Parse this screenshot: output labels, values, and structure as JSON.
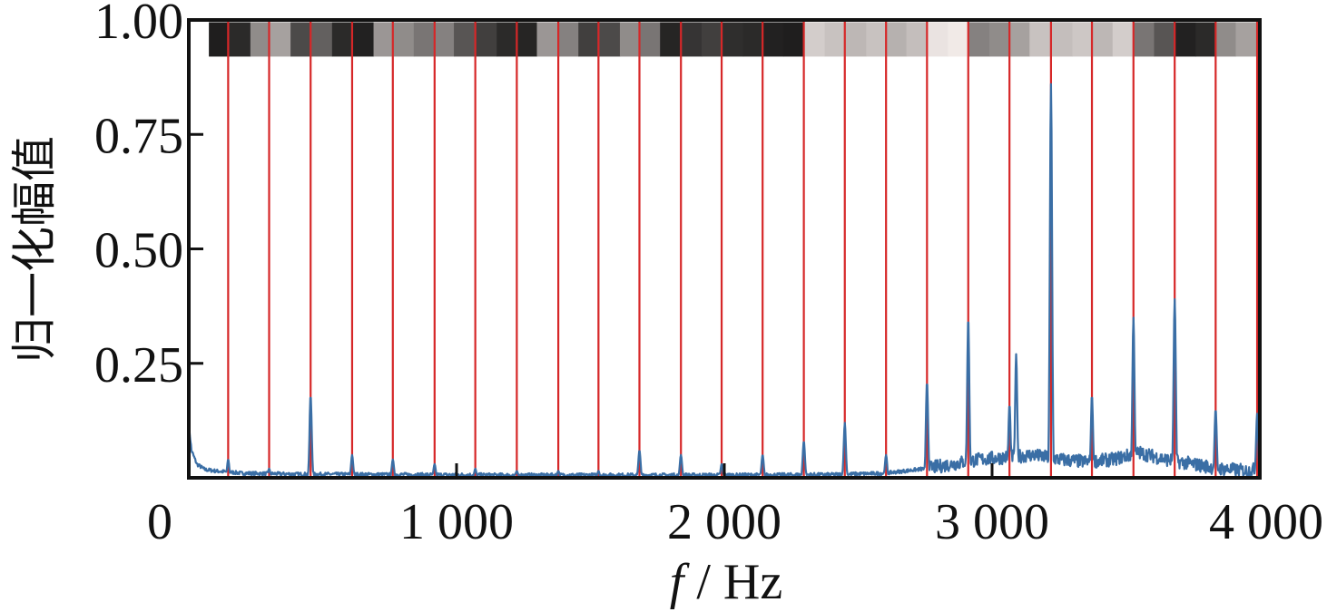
{
  "chart_data": {
    "type": "line",
    "title": "",
    "xlabel_italic": "f",
    "xlabel_rest": " / Hz",
    "ylabel": "归一化幅值",
    "xlim": [
      0,
      4000
    ],
    "ylim": [
      0,
      1.0
    ],
    "x_ticks": [
      0,
      1000,
      2000,
      3000,
      4000
    ],
    "x_tick_labels": [
      "0",
      "1 000",
      "2 000",
      "3 000",
      "4 000"
    ],
    "y_ticks": [
      0.25,
      0.5,
      0.75,
      1.0
    ],
    "y_tick_labels": [
      "0.25",
      "0.50",
      "0.75",
      "1.00"
    ],
    "grid": false,
    "colors": {
      "spectrum": "#3a6ea5",
      "harmonic_lines": "#d62728",
      "frame": "#111111"
    },
    "harmonic_lines_hz": [
      147,
      300,
      455,
      610,
      762,
      918,
      1070,
      1225,
      1380,
      1530,
      1683,
      1838,
      1990,
      2143,
      2297,
      2450,
      2604,
      2757,
      2911,
      3065,
      3220,
      3373,
      3528,
      3682,
      3835,
      3990
    ],
    "spectrum_baseline": [
      [
        0,
        0.115
      ],
      [
        10,
        0.06
      ],
      [
        30,
        0.03
      ],
      [
        60,
        0.018
      ],
      [
        100,
        0.015
      ],
      [
        200,
        0.01
      ],
      [
        400,
        0.008
      ],
      [
        800,
        0.007
      ],
      [
        1200,
        0.006
      ],
      [
        1600,
        0.006
      ],
      [
        2000,
        0.006
      ],
      [
        2400,
        0.007
      ],
      [
        2600,
        0.01
      ],
      [
        2750,
        0.02
      ],
      [
        2850,
        0.03
      ],
      [
        2950,
        0.04
      ],
      [
        3050,
        0.045
      ],
      [
        3150,
        0.05
      ],
      [
        3250,
        0.04
      ],
      [
        3350,
        0.035
      ],
      [
        3450,
        0.04
      ],
      [
        3550,
        0.055
      ],
      [
        3650,
        0.04
      ],
      [
        3750,
        0.03
      ],
      [
        3850,
        0.02
      ],
      [
        3950,
        0.015
      ],
      [
        4000,
        0.02
      ]
    ],
    "spectrum_peaks": [
      {
        "f": 147,
        "a": 0.04
      },
      {
        "f": 300,
        "a": 0.02
      },
      {
        "f": 455,
        "a": 0.18
      },
      {
        "f": 610,
        "a": 0.05
      },
      {
        "f": 762,
        "a": 0.04
      },
      {
        "f": 918,
        "a": 0.03
      },
      {
        "f": 1070,
        "a": 0.02
      },
      {
        "f": 1225,
        "a": 0.015
      },
      {
        "f": 1380,
        "a": 0.015
      },
      {
        "f": 1530,
        "a": 0.015
      },
      {
        "f": 1683,
        "a": 0.06
      },
      {
        "f": 1838,
        "a": 0.05
      },
      {
        "f": 1990,
        "a": 0.03
      },
      {
        "f": 2143,
        "a": 0.05
      },
      {
        "f": 2297,
        "a": 0.08
      },
      {
        "f": 2450,
        "a": 0.12
      },
      {
        "f": 2604,
        "a": 0.05
      },
      {
        "f": 2757,
        "a": 0.21
      },
      {
        "f": 2911,
        "a": 0.35
      },
      {
        "f": 3065,
        "a": 0.16
      },
      {
        "f": 3090,
        "a": 0.27
      },
      {
        "f": 3220,
        "a": 0.86
      },
      {
        "f": 3373,
        "a": 0.18
      },
      {
        "f": 3528,
        "a": 0.35
      },
      {
        "f": 3682,
        "a": 0.39
      },
      {
        "f": 3835,
        "a": 0.15
      },
      {
        "f": 3990,
        "a": 0.14
      }
    ],
    "intensity_bar": {
      "y_range": [
        0.92,
        0.995
      ],
      "cells": [
        {
          "start": 75,
          "end": 147,
          "gray": 0.05
        },
        {
          "start": 147,
          "end": 230,
          "gray": 0.1
        },
        {
          "start": 230,
          "end": 300,
          "gray": 0.55
        },
        {
          "start": 300,
          "end": 380,
          "gray": 0.65
        },
        {
          "start": 380,
          "end": 455,
          "gray": 0.25
        },
        {
          "start": 455,
          "end": 535,
          "gray": 0.35
        },
        {
          "start": 535,
          "end": 610,
          "gray": 0.1
        },
        {
          "start": 610,
          "end": 690,
          "gray": 0.06
        },
        {
          "start": 690,
          "end": 762,
          "gray": 0.6
        },
        {
          "start": 762,
          "end": 840,
          "gray": 0.55
        },
        {
          "start": 840,
          "end": 918,
          "gray": 0.45
        },
        {
          "start": 918,
          "end": 990,
          "gray": 0.5
        },
        {
          "start": 990,
          "end": 1070,
          "gray": 0.3
        },
        {
          "start": 1070,
          "end": 1150,
          "gray": 0.2
        },
        {
          "start": 1150,
          "end": 1225,
          "gray": 0.1
        },
        {
          "start": 1225,
          "end": 1300,
          "gray": 0.08
        },
        {
          "start": 1300,
          "end": 1380,
          "gray": 0.6
        },
        {
          "start": 1380,
          "end": 1455,
          "gray": 0.5
        },
        {
          "start": 1455,
          "end": 1530,
          "gray": 0.2
        },
        {
          "start": 1530,
          "end": 1610,
          "gray": 0.25
        },
        {
          "start": 1610,
          "end": 1683,
          "gray": 0.55
        },
        {
          "start": 1683,
          "end": 1760,
          "gray": 0.45
        },
        {
          "start": 1760,
          "end": 1838,
          "gray": 0.08
        },
        {
          "start": 1838,
          "end": 1915,
          "gray": 0.15
        },
        {
          "start": 1915,
          "end": 1990,
          "gray": 0.2
        },
        {
          "start": 1990,
          "end": 2070,
          "gray": 0.12
        },
        {
          "start": 2070,
          "end": 2143,
          "gray": 0.1
        },
        {
          "start": 2143,
          "end": 2220,
          "gray": 0.06
        },
        {
          "start": 2220,
          "end": 2297,
          "gray": 0.05
        },
        {
          "start": 2297,
          "end": 2375,
          "gray": 0.85
        },
        {
          "start": 2375,
          "end": 2450,
          "gray": 0.8
        },
        {
          "start": 2450,
          "end": 2530,
          "gray": 0.75
        },
        {
          "start": 2530,
          "end": 2604,
          "gray": 0.8
        },
        {
          "start": 2604,
          "end": 2680,
          "gray": 0.72
        },
        {
          "start": 2680,
          "end": 2757,
          "gray": 0.78
        },
        {
          "start": 2757,
          "end": 2835,
          "gray": 0.95
        },
        {
          "start": 2835,
          "end": 2911,
          "gray": 0.98
        },
        {
          "start": 2911,
          "end": 2990,
          "gray": 0.5
        },
        {
          "start": 2990,
          "end": 3065,
          "gray": 0.55
        },
        {
          "start": 3065,
          "end": 3140,
          "gray": 0.65
        },
        {
          "start": 3140,
          "end": 3220,
          "gray": 0.8
        },
        {
          "start": 3220,
          "end": 3300,
          "gray": 0.78
        },
        {
          "start": 3300,
          "end": 3373,
          "gray": 0.82
        },
        {
          "start": 3373,
          "end": 3450,
          "gray": 0.75
        },
        {
          "start": 3450,
          "end": 3528,
          "gray": 0.85
        },
        {
          "start": 3528,
          "end": 3605,
          "gray": 0.45
        },
        {
          "start": 3605,
          "end": 3682,
          "gray": 0.3
        },
        {
          "start": 3682,
          "end": 3760,
          "gray": 0.06
        },
        {
          "start": 3760,
          "end": 3835,
          "gray": 0.1
        },
        {
          "start": 3835,
          "end": 3910,
          "gray": 0.55
        },
        {
          "start": 3910,
          "end": 4000,
          "gray": 0.65
        }
      ]
    }
  }
}
